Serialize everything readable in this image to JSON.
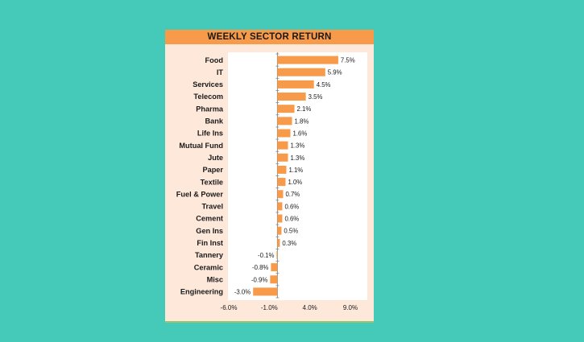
{
  "chart_data": {
    "type": "bar",
    "orientation": "horizontal",
    "title": "WEEKLY SECTOR RETURN",
    "categories": [
      "Food",
      "IT",
      "Services",
      "Telecom",
      "Pharma",
      "Bank",
      "Life Ins",
      "Mutual Fund",
      "Jute",
      "Paper",
      "Textile",
      "Fuel & Power",
      "Travel",
      "Cement",
      "Gen Ins",
      "Fin Inst",
      "Tannery",
      "Ceramic",
      "Misc",
      "Engineering"
    ],
    "values": [
      7.5,
      5.9,
      4.5,
      3.5,
      2.1,
      1.8,
      1.6,
      1.3,
      1.3,
      1.1,
      1.0,
      0.7,
      0.6,
      0.6,
      0.5,
      0.3,
      -0.1,
      -0.8,
      -0.9,
      -3.0
    ],
    "value_labels": [
      "7.5%",
      "5.9%",
      "4.5%",
      "3.5%",
      "2.1%",
      "1.8%",
      "1.6%",
      "1.3%",
      "1.3%",
      "1.1%",
      "1.0%",
      "0.7%",
      "0.6%",
      "0.6%",
      "0.5%",
      "0.3%",
      "-0.1%",
      "-0.8%",
      "-0.9%",
      "-3.0%"
    ],
    "xticks": [
      -6.0,
      -1.0,
      4.0,
      9.0
    ],
    "xtick_labels": [
      "-6.0%",
      "-1.0%",
      "4.0%",
      "9.0%"
    ],
    "xlim": [
      -6.0,
      9.0
    ],
    "bar_color": "#f79b4a",
    "grid": false,
    "legend": "none"
  }
}
